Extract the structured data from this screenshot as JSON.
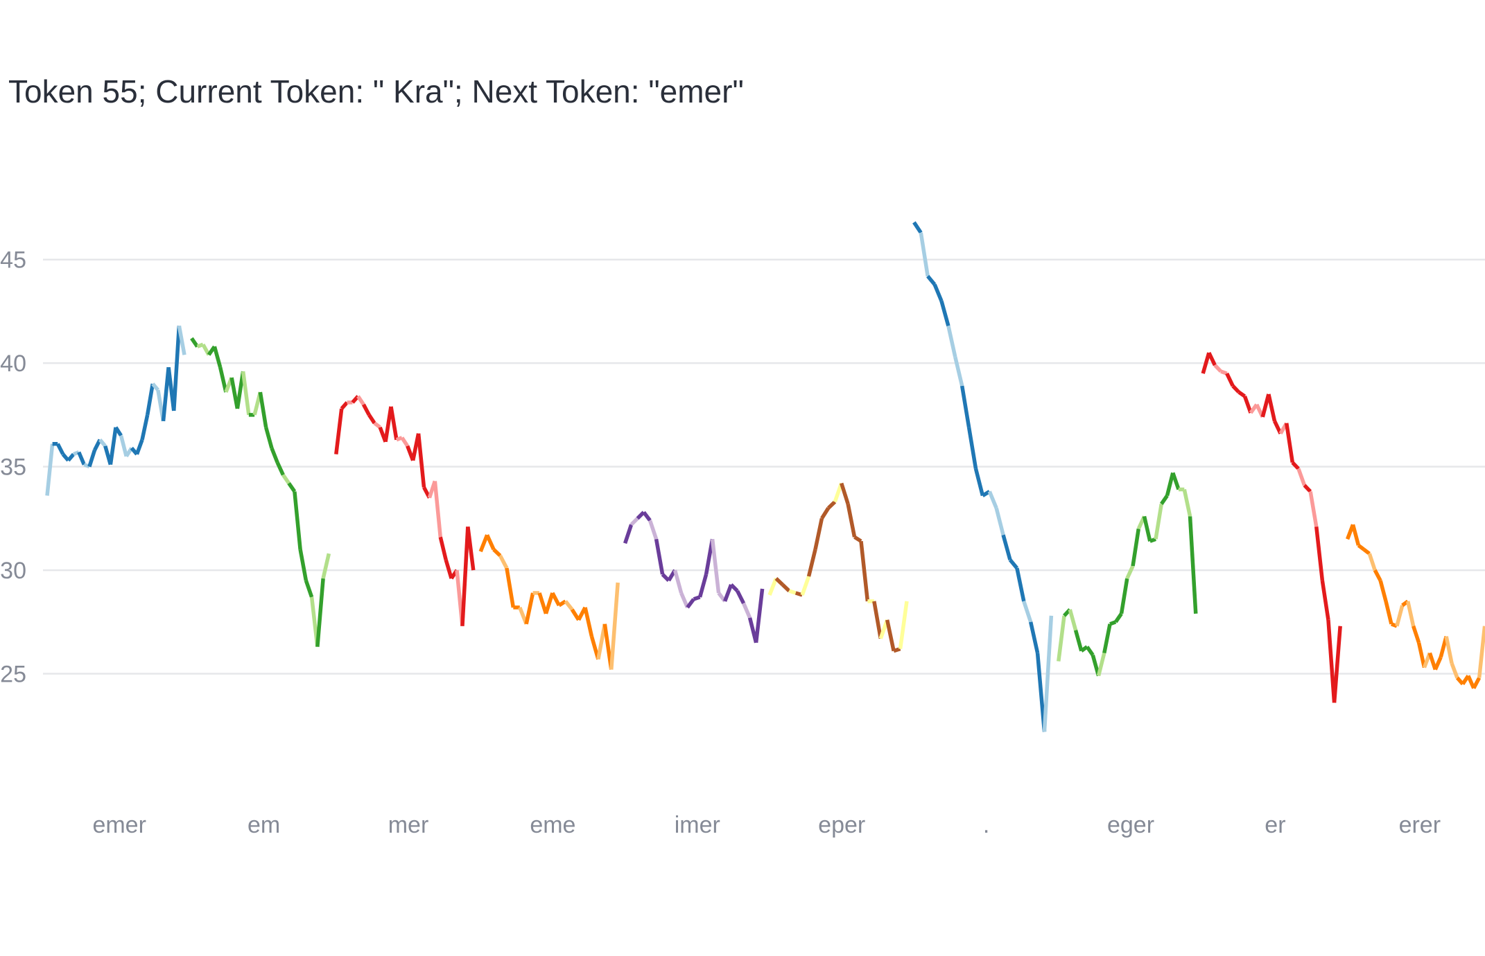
{
  "chart_data": {
    "type": "line",
    "title": "Token 55; Current Token: \" Kra\"; Next Token: \"emer\"",
    "xlabel": "",
    "ylabel": "",
    "grid": true,
    "legend": "none",
    "ylim": [
      20.4,
      47.5
    ],
    "yticks": [
      25,
      30,
      35,
      40,
      45
    ],
    "xticks": [
      "emer",
      "em",
      "mer",
      "eme",
      "imer",
      "eper",
      ".",
      "eger",
      "er",
      "erer"
    ],
    "series": [
      {
        "color": "#1f77b4",
        "light": "#a6cee3",
        "x_start": 0.0,
        "x_end": 0.95,
        "values": [
          33.6,
          36.1,
          36.1,
          35.6,
          35.3,
          35.6,
          35.7,
          35.1,
          35.0,
          35.8,
          36.3,
          36.0,
          35.1,
          36.9,
          36.5,
          35.5,
          35.9,
          35.6,
          36.3,
          37.5,
          39.0,
          38.7,
          37.2,
          39.8,
          37.7,
          41.8,
          40.4
        ]
      },
      {
        "color": "#33a02c",
        "light": "#b2df8a",
        "x_start": 1.0,
        "x_end": 1.95,
        "values": [
          41.2,
          40.8,
          40.9,
          40.4,
          40.8,
          39.8,
          38.6,
          39.3,
          37.8,
          39.6,
          37.5,
          37.5,
          38.6,
          36.9,
          35.9,
          35.2,
          34.6,
          34.2,
          33.8,
          31.0,
          29.5,
          28.7,
          26.3,
          29.6,
          30.8
        ]
      },
      {
        "color": "#e31a1c",
        "light": "#fb9a99",
        "x_start": 2.0,
        "x_end": 2.95,
        "values": [
          35.6,
          37.8,
          38.1,
          38.1,
          38.4,
          38.0,
          37.5,
          37.1,
          36.9,
          36.2,
          37.9,
          36.3,
          36.4,
          36.0,
          35.3,
          36.6,
          34.0,
          33.5,
          34.3,
          31.6,
          30.5,
          29.6,
          30.0,
          27.3,
          32.1,
          30.0
        ]
      },
      {
        "color": "#ff7f00",
        "light": "#fdbf6f",
        "x_start": 3.0,
        "x_end": 3.95,
        "values": [
          30.9,
          31.7,
          31.0,
          30.7,
          30.1,
          28.2,
          28.2,
          27.4,
          28.9,
          28.9,
          27.9,
          28.9,
          28.3,
          28.5,
          28.1,
          27.6,
          28.2,
          26.8,
          25.7,
          27.4,
          25.2,
          29.4
        ]
      },
      {
        "color": "#6a3d9a",
        "light": "#cab2d6",
        "x_start": 4.0,
        "x_end": 4.95,
        "values": [
          31.3,
          32.2,
          32.5,
          32.8,
          32.4,
          31.5,
          29.8,
          29.5,
          30.0,
          28.9,
          28.2,
          28.6,
          28.7,
          29.8,
          31.5,
          28.9,
          28.5,
          29.3,
          29.0,
          28.4,
          27.7,
          26.5,
          29.1
        ]
      },
      {
        "color": "#b15928",
        "light": "#ffff99",
        "x_start": 5.0,
        "x_end": 5.95,
        "values": [
          28.8,
          29.6,
          29.3,
          29.0,
          28.9,
          28.8,
          29.7,
          31.0,
          32.5,
          33.0,
          33.3,
          34.2,
          33.2,
          31.6,
          31.4,
          28.5,
          28.5,
          26.7,
          27.6,
          26.1,
          26.2,
          28.5
        ]
      },
      {
        "color": "#1f77b4",
        "light": "#a6cee3",
        "x_start": 6.0,
        "x_end": 6.95,
        "values": [
          46.8,
          46.3,
          44.2,
          43.8,
          43.0,
          41.8,
          40.3,
          38.9,
          36.9,
          34.9,
          33.6,
          33.8,
          33.0,
          31.7,
          30.5,
          30.1,
          28.5,
          27.5,
          26.0,
          22.2,
          27.8
        ]
      },
      {
        "color": "#33a02c",
        "light": "#b2df8a",
        "x_start": 7.0,
        "x_end": 7.95,
        "values": [
          25.6,
          27.8,
          28.1,
          27.1,
          26.1,
          26.3,
          25.9,
          24.9,
          26.0,
          27.4,
          27.5,
          27.9,
          29.6,
          30.2,
          32.0,
          32.6,
          31.4,
          31.5,
          33.2,
          33.6,
          34.7,
          33.9,
          33.9,
          32.6,
          27.9
        ]
      },
      {
        "color": "#e31a1c",
        "light": "#fb9a99",
        "x_start": 8.0,
        "x_end": 8.95,
        "values": [
          39.5,
          40.5,
          39.9,
          39.6,
          39.5,
          38.9,
          38.6,
          38.4,
          37.6,
          38.0,
          37.4,
          38.5,
          37.2,
          36.6,
          37.1,
          35.2,
          34.9,
          34.1,
          33.8,
          32.1,
          29.5,
          27.6,
          23.6,
          27.3
        ]
      },
      {
        "color": "#ff7f00",
        "light": "#fdbf6f",
        "x_start": 9.0,
        "x_end": 9.95,
        "values": [
          31.5,
          32.2,
          31.2,
          31.0,
          30.8,
          30.0,
          29.5,
          28.5,
          27.4,
          27.3,
          28.3,
          28.5,
          27.3,
          26.5,
          25.3,
          26.0,
          25.2,
          25.8,
          26.8,
          25.5,
          24.8,
          24.5,
          24.9,
          24.3,
          24.8,
          27.3
        ]
      }
    ]
  }
}
